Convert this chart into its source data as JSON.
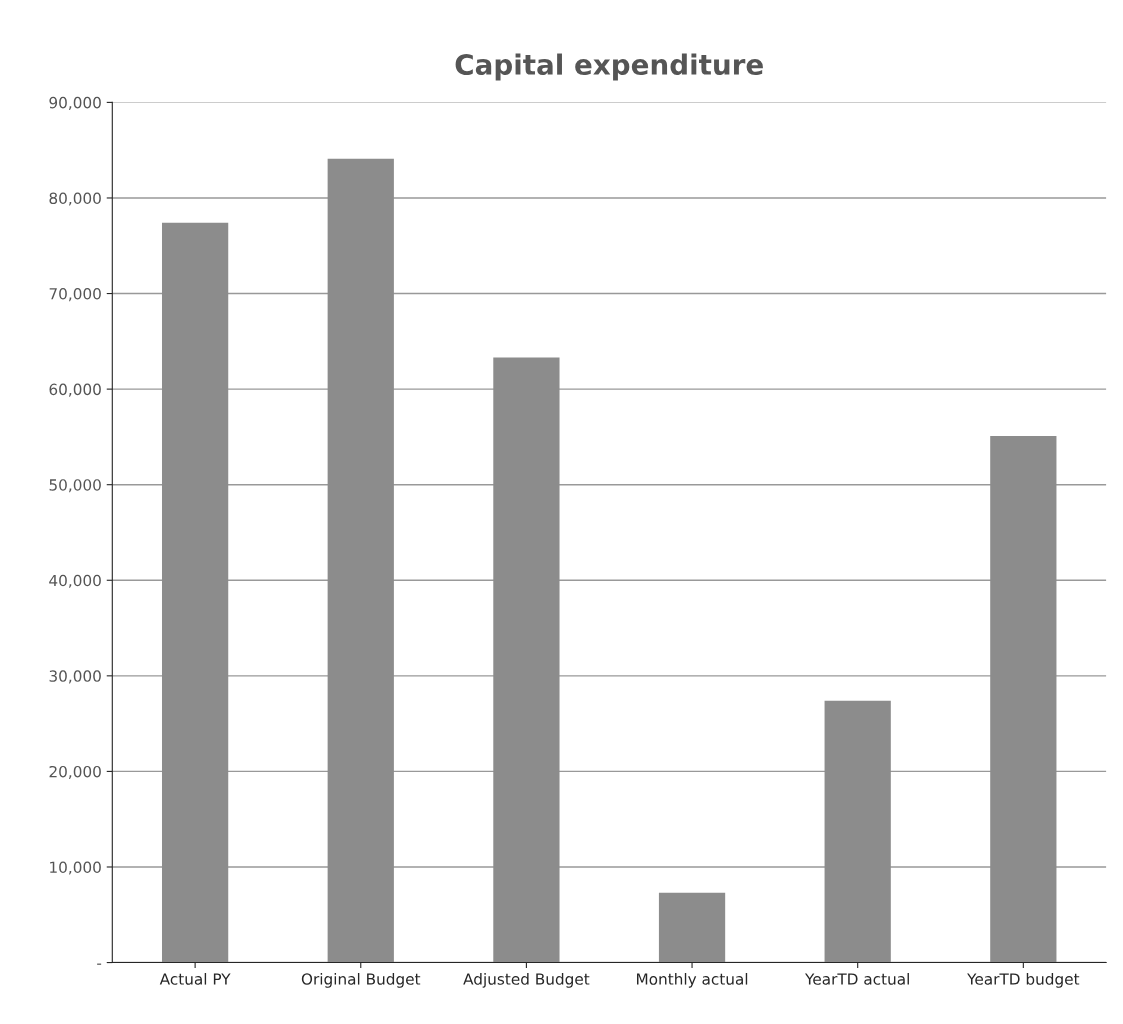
{
  "chart_data": {
    "type": "bar",
    "title": "Capital expenditure",
    "categories": [
      "Actual PY",
      "Original Budget",
      "Adjusted Budget",
      "Monthly actual",
      "YearTD actual",
      "YearTD budget"
    ],
    "values": [
      77400,
      84100,
      63300,
      7300,
      27400,
      55100
    ],
    "color": "#8c8c8c",
    "ylim": [
      0,
      90000
    ],
    "yticks": [
      {
        "value": 0,
        "label": "-"
      },
      {
        "value": 10000,
        "label": "10,000"
      },
      {
        "value": 20000,
        "label": "20,000"
      },
      {
        "value": 30000,
        "label": "30,000"
      },
      {
        "value": 40000,
        "label": "40,000"
      },
      {
        "value": 50000,
        "label": "50,000"
      },
      {
        "value": 60000,
        "label": "60,000"
      },
      {
        "value": 70000,
        "label": "70,000"
      },
      {
        "value": 80000,
        "label": "80,000"
      },
      {
        "value": 90000,
        "label": "90,000"
      }
    ],
    "grid": "y",
    "legend": false
  }
}
